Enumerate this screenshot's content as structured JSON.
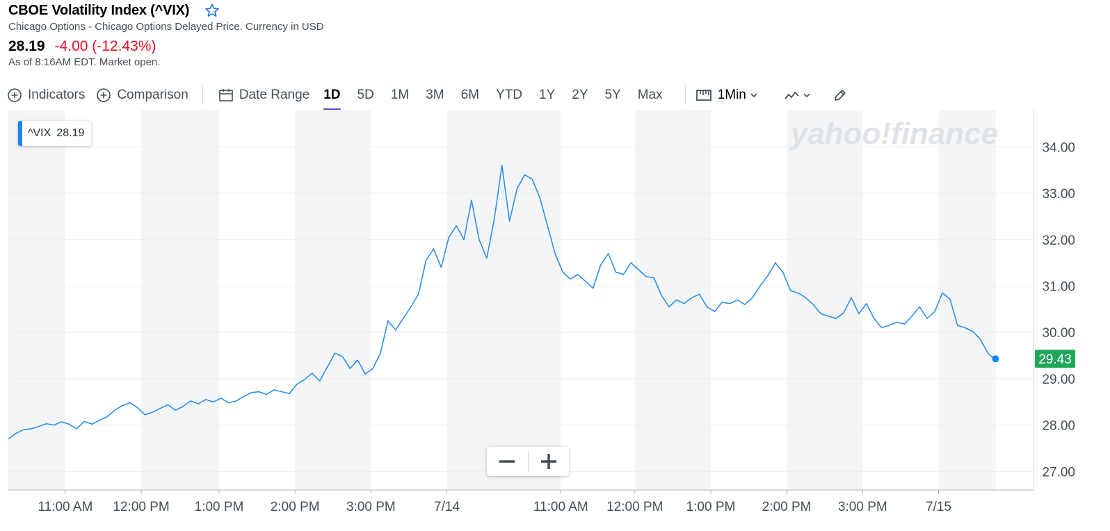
{
  "header": {
    "title": "CBOE Volatility Index (^VIX)",
    "subtitle": "Chicago Options - Chicago Options Delayed Price. Currency in USD",
    "price": "28.19",
    "change": "-4.00 (-12.43%)",
    "as_of": "As of 8:16AM EDT. Market open."
  },
  "toolbar": {
    "indicators": "Indicators",
    "comparison": "Comparison",
    "date_range": "Date Range",
    "ranges": [
      "1D",
      "5D",
      "1M",
      "3M",
      "6M",
      "YTD",
      "1Y",
      "2Y",
      "5Y",
      "Max"
    ],
    "active_range": "1D",
    "interval": "1Min"
  },
  "tooltip": {
    "symbol": "^VIX",
    "value": "28.19"
  },
  "watermark": "yahoo!finance",
  "colors": {
    "line": "#2b8ff0",
    "negative": "#eb0f29",
    "last_price_bg": "#1fa65a",
    "accent": "#5b4fd4"
  },
  "chart_data": {
    "type": "line",
    "series": [
      {
        "name": "^VIX",
        "points": [
          [
            0,
            27.7
          ],
          [
            4,
            27.82
          ],
          [
            8,
            27.9
          ],
          [
            12,
            27.92
          ],
          [
            16,
            27.97
          ],
          [
            20,
            28.03
          ],
          [
            24,
            28.0
          ],
          [
            28,
            28.07
          ],
          [
            32,
            28.02
          ],
          [
            36,
            27.92
          ],
          [
            40,
            28.08
          ],
          [
            44,
            28.02
          ],
          [
            48,
            28.1
          ],
          [
            52,
            28.18
          ],
          [
            56,
            28.32
          ],
          [
            60,
            28.42
          ],
          [
            64,
            28.48
          ],
          [
            68,
            28.38
          ],
          [
            72,
            28.22
          ],
          [
            76,
            28.28
          ],
          [
            80,
            28.36
          ],
          [
            84,
            28.44
          ],
          [
            88,
            28.32
          ],
          [
            92,
            28.4
          ],
          [
            96,
            28.52
          ],
          [
            100,
            28.46
          ],
          [
            104,
            28.55
          ],
          [
            108,
            28.5
          ],
          [
            112,
            28.58
          ],
          [
            116,
            28.48
          ],
          [
            120,
            28.52
          ],
          [
            124,
            28.62
          ],
          [
            128,
            28.7
          ],
          [
            132,
            28.72
          ],
          [
            136,
            28.66
          ],
          [
            140,
            28.76
          ],
          [
            144,
            28.72
          ],
          [
            148,
            28.68
          ],
          [
            152,
            28.88
          ],
          [
            156,
            28.98
          ],
          [
            160,
            29.12
          ],
          [
            164,
            28.95
          ],
          [
            168,
            29.25
          ],
          [
            172,
            29.55
          ],
          [
            176,
            29.48
          ],
          [
            180,
            29.22
          ],
          [
            184,
            29.4
          ],
          [
            188,
            29.1
          ],
          [
            192,
            29.22
          ],
          [
            196,
            29.55
          ],
          [
            200,
            30.25
          ],
          [
            204,
            30.05
          ],
          [
            208,
            30.3
          ],
          [
            212,
            30.55
          ],
          [
            216,
            30.82
          ],
          [
            220,
            31.55
          ],
          [
            224,
            31.8
          ],
          [
            228,
            31.4
          ],
          [
            232,
            32.05
          ],
          [
            236,
            32.3
          ],
          [
            240,
            32.0
          ],
          [
            244,
            32.85
          ],
          [
            248,
            32.0
          ],
          [
            252,
            31.6
          ],
          [
            256,
            32.45
          ],
          [
            260,
            33.6
          ],
          [
            264,
            32.4
          ],
          [
            268,
            33.1
          ],
          [
            272,
            33.4
          ],
          [
            276,
            33.3
          ],
          [
            280,
            32.9
          ],
          [
            284,
            32.3
          ],
          [
            288,
            31.7
          ],
          [
            292,
            31.3
          ],
          [
            296,
            31.15
          ],
          [
            300,
            31.25
          ],
          [
            304,
            31.1
          ],
          [
            308,
            30.95
          ],
          [
            312,
            31.45
          ],
          [
            316,
            31.7
          ],
          [
            320,
            31.3
          ],
          [
            324,
            31.25
          ],
          [
            328,
            31.5
          ],
          [
            332,
            31.35
          ],
          [
            336,
            31.2
          ],
          [
            340,
            31.18
          ],
          [
            344,
            30.8
          ],
          [
            348,
            30.55
          ],
          [
            352,
            30.7
          ],
          [
            356,
            30.62
          ],
          [
            360,
            30.75
          ],
          [
            364,
            30.82
          ],
          [
            368,
            30.55
          ],
          [
            372,
            30.45
          ],
          [
            376,
            30.65
          ],
          [
            380,
            30.62
          ],
          [
            384,
            30.7
          ],
          [
            388,
            30.6
          ],
          [
            392,
            30.75
          ],
          [
            396,
            31.0
          ],
          [
            400,
            31.22
          ],
          [
            404,
            31.5
          ],
          [
            408,
            31.3
          ],
          [
            412,
            30.9
          ],
          [
            416,
            30.85
          ],
          [
            420,
            30.75
          ],
          [
            424,
            30.6
          ],
          [
            428,
            30.4
          ],
          [
            432,
            30.35
          ],
          [
            436,
            30.3
          ],
          [
            440,
            30.42
          ],
          [
            444,
            30.75
          ],
          [
            448,
            30.4
          ],
          [
            452,
            30.62
          ],
          [
            456,
            30.3
          ],
          [
            460,
            30.1
          ],
          [
            464,
            30.15
          ],
          [
            468,
            30.22
          ],
          [
            472,
            30.18
          ],
          [
            476,
            30.35
          ],
          [
            480,
            30.55
          ],
          [
            484,
            30.3
          ],
          [
            488,
            30.45
          ],
          [
            492,
            30.85
          ],
          [
            496,
            30.72
          ],
          [
            500,
            30.15
          ],
          [
            504,
            30.1
          ],
          [
            508,
            30.02
          ],
          [
            512,
            29.85
          ],
          [
            516,
            29.55
          ],
          [
            520,
            29.4
          ]
        ],
        "last_value": "29.43"
      }
    ],
    "x_range": [
      0,
      540
    ],
    "y_range": [
      26.6,
      34.8
    ],
    "y_ticks": [
      "27.00",
      "28.00",
      "29.00",
      "30.00",
      "31.00",
      "32.00",
      "33.00",
      "34.00"
    ],
    "x_ticks": [
      {
        "x": 30,
        "label": "11:00 AM"
      },
      {
        "x": 70,
        "label": "12:00 PM"
      },
      {
        "x": 111,
        "label": "1:00 PM"
      },
      {
        "x": 151,
        "label": "2:00 PM"
      },
      {
        "x": 191,
        "label": "3:00 PM"
      },
      {
        "x": 231,
        "label": "7/14"
      },
      {
        "x": 291,
        "label": "11:00 AM"
      },
      {
        "x": 330,
        "label": "12:00 PM"
      },
      {
        "x": 370,
        "label": "1:00 PM"
      },
      {
        "x": 410,
        "label": "2:00 PM"
      },
      {
        "x": 450,
        "label": "3:00 PM"
      },
      {
        "x": 490,
        "label": "7/15"
      }
    ],
    "shaded_bands": [
      [
        0,
        30
      ],
      [
        70,
        111
      ],
      [
        151,
        191
      ],
      [
        231,
        291
      ],
      [
        330,
        370
      ],
      [
        410,
        450
      ],
      [
        490,
        520
      ]
    ],
    "grid": true
  }
}
